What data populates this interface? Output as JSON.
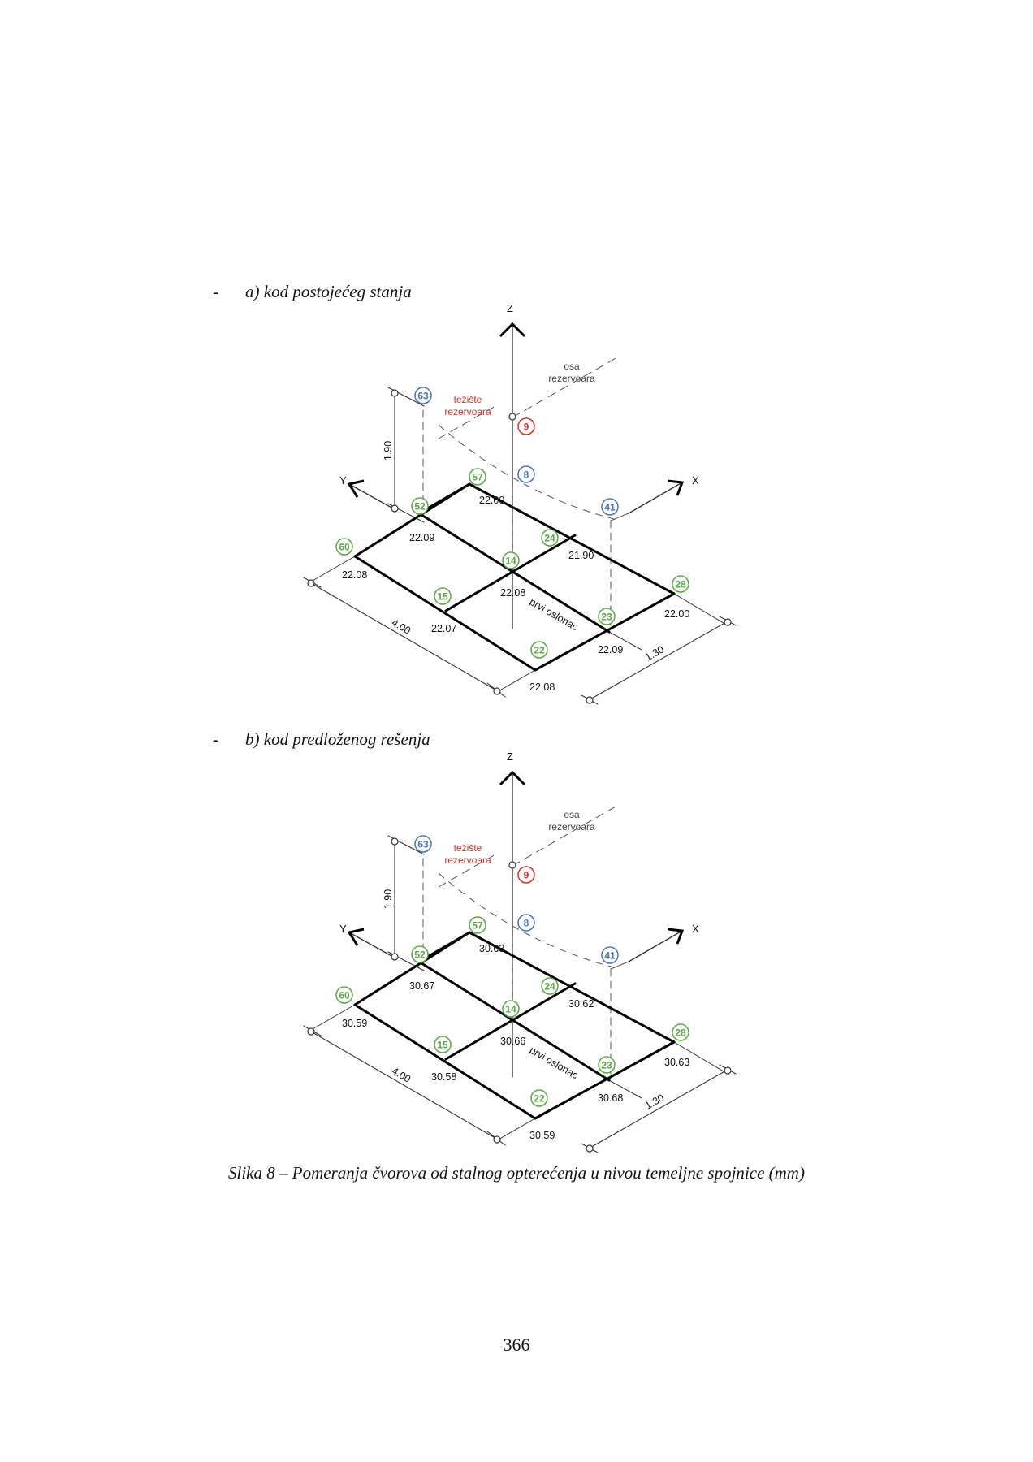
{
  "headings": {
    "a": {
      "dash": "-",
      "text": "a) kod postojećeg stanja"
    },
    "b": {
      "dash": "-",
      "text": "b) kod predloženog rešenja"
    }
  },
  "caption": "Slika 8 – Pomeranja čvorova od stalnog opterećenja u nivou temeljne spojnice (mm)",
  "page_number": "366",
  "diagram_labels": {
    "axis_z": "Z",
    "axis_y": "Y",
    "axis_x": "X",
    "osa_line1": "osa",
    "osa_line2": "rezervoara",
    "teziste_line1": "težište",
    "teziste_line2": "rezervoara",
    "height_dim": "1.90",
    "length_dim": "4.00",
    "width_dim": "1.30",
    "support_label": "prvi oslonac"
  },
  "colors": {
    "node_green": "#5aa846",
    "node_blue": "#4a74b8",
    "node_red": "#d6332c",
    "frame": "#000000"
  },
  "diagrams": [
    {
      "nodes": [
        {
          "id": "63",
          "color": "blue"
        },
        {
          "id": "9",
          "color": "red"
        },
        {
          "id": "8",
          "color": "blue"
        },
        {
          "id": "57",
          "color": "green"
        },
        {
          "id": "52",
          "color": "green"
        },
        {
          "id": "41",
          "color": "blue"
        },
        {
          "id": "60",
          "color": "green"
        },
        {
          "id": "24",
          "color": "green"
        },
        {
          "id": "14",
          "color": "green"
        },
        {
          "id": "15",
          "color": "green"
        },
        {
          "id": "28",
          "color": "green"
        },
        {
          "id": "23",
          "color": "green"
        },
        {
          "id": "22",
          "color": "green"
        }
      ],
      "displacements": {
        "57": "22.00",
        "52": "22.09",
        "60": "22.08",
        "24": "21.90",
        "14": "22.08",
        "15": "22.07",
        "28": "22.00",
        "23": "22.09",
        "22": "22.08"
      }
    },
    {
      "nodes": [
        {
          "id": "63",
          "color": "blue"
        },
        {
          "id": "9",
          "color": "red"
        },
        {
          "id": "8",
          "color": "blue"
        },
        {
          "id": "57",
          "color": "green"
        },
        {
          "id": "52",
          "color": "green"
        },
        {
          "id": "41",
          "color": "blue"
        },
        {
          "id": "60",
          "color": "green"
        },
        {
          "id": "24",
          "color": "green"
        },
        {
          "id": "14",
          "color": "green"
        },
        {
          "id": "15",
          "color": "green"
        },
        {
          "id": "28",
          "color": "green"
        },
        {
          "id": "23",
          "color": "green"
        },
        {
          "id": "22",
          "color": "green"
        }
      ],
      "displacements": {
        "57": "30.63",
        "52": "30.67",
        "60": "30.59",
        "24": "30.62",
        "14": "30.66",
        "15": "30.58",
        "28": "30.63",
        "23": "30.68",
        "22": "30.59"
      }
    }
  ]
}
